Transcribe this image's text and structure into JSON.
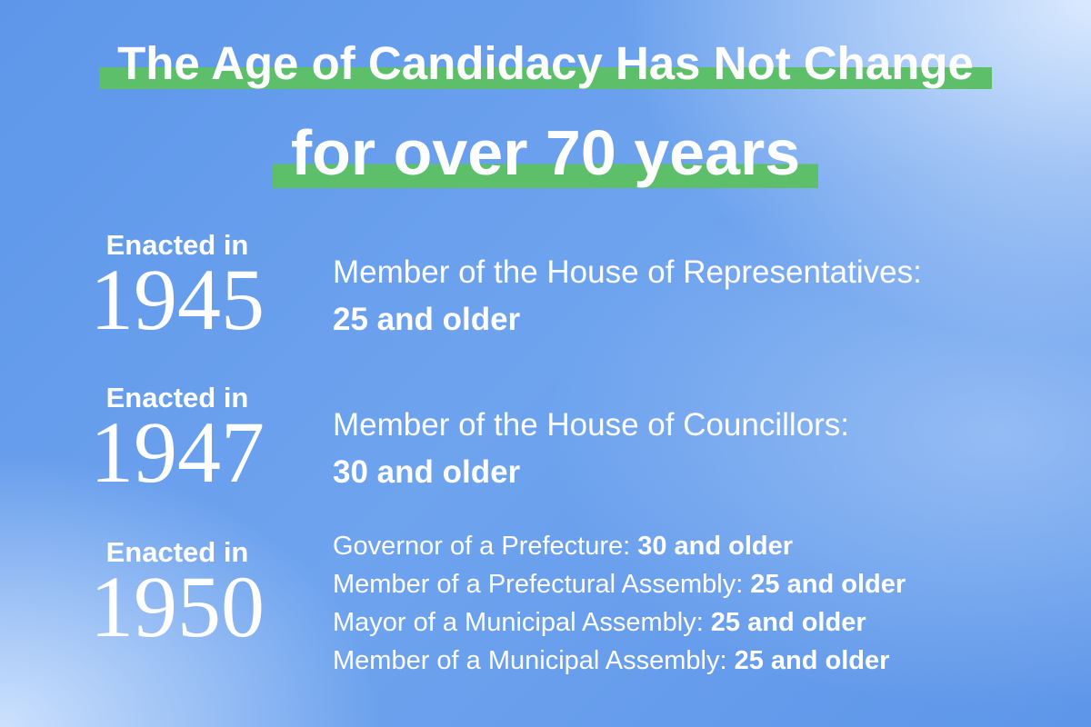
{
  "title": {
    "lines": [
      "The Age of Candidacy Has Not Change",
      "for over 70 years"
    ]
  },
  "entries": [
    {
      "label": "Enacted in",
      "year": "1945",
      "positions": [
        {
          "office": "Member of the House of Representatives:",
          "age": "25 and older"
        }
      ]
    },
    {
      "label": "Enacted in",
      "year": "1947",
      "positions": [
        {
          "office": "Member of the House of Councillors:",
          "age": "30 and older"
        }
      ]
    },
    {
      "label": "Enacted in",
      "year": "1950",
      "positions": [
        {
          "office": "Governor of a Prefecture:",
          "age": "30 and older"
        },
        {
          "office": "Member of a Prefectural Assembly:",
          "age": "25 and older"
        },
        {
          "office": "Mayor of a Municipal Assembly:",
          "age": "25 and older"
        },
        {
          "office": "Member of a Municipal Assembly:",
          "age": "25 and older"
        }
      ]
    }
  ]
}
